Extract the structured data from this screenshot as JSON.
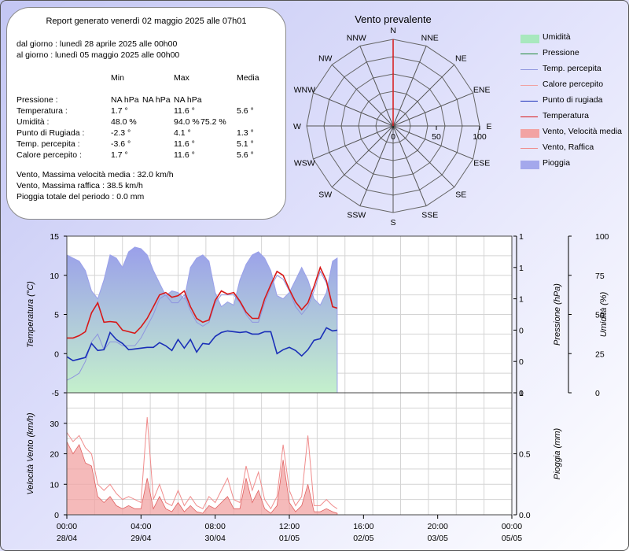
{
  "report": {
    "title": "Report generato venerdì 02 maggio 2025 alle 07h01",
    "from": "dal giorno : lunedì 28 aprile 2025 alle 00h00",
    "to": "al giorno : lunedì 05 maggio 2025 alle 00h00",
    "col_min": "Min",
    "col_max": "Max",
    "col_avg": "Media",
    "rows": [
      {
        "label": "Pressione :",
        "min": "NA hPa",
        "min2": "NA hPa",
        "max": "NA hPa",
        "max2": "",
        "avg": ""
      },
      {
        "label": "Temperatura :",
        "min": "1.7 °",
        "min2": "",
        "max": "11.6 °",
        "max2": "",
        "avg": "5.6 °"
      },
      {
        "label": "Umidità :",
        "min": "48.0 %",
        "min2": "",
        "max": "94.0 %",
        "max2": "75.2 %",
        "avg": ""
      },
      {
        "label": "Punto di Rugiada :",
        "min": "-2.3 °",
        "min2": "",
        "max": "4.1 °",
        "max2": "",
        "avg": "1.3 °"
      },
      {
        "label": "Temp. percepita :",
        "min": "-3.6 °",
        "min2": "",
        "max": "11.6 °",
        "max2": "",
        "avg": "5.1 °"
      },
      {
        "label": "Calore percepito :",
        "min": "1.7 °",
        "min2": "",
        "max": "11.6 °",
        "max2": "",
        "avg": "5.6 °"
      }
    ],
    "wind_avg": "Vento, Massima velocità media : 32.0 km/h",
    "wind_gust": "Vento, Massima raffica : 38.5 km/h",
    "rain_total": "Pioggia totale del periodo : 0.0 mm"
  },
  "legend": [
    {
      "label": "Umidità",
      "color": "#a8e8be",
      "kind": "box"
    },
    {
      "label": "Pressione",
      "color": "#1e8a3a",
      "kind": "line"
    },
    {
      "label": "Temp. percepita",
      "color": "#8f96de",
      "kind": "line"
    },
    {
      "label": "Calore percepito",
      "color": "#f0a0a0",
      "kind": "line"
    },
    {
      "label": "Punto di rugiada",
      "color": "#1a2fb8",
      "kind": "line"
    },
    {
      "label": "Temperatura",
      "color": "#d81818",
      "kind": "line"
    },
    {
      "label": "Vento, Velocità media",
      "color": "#f2a3a3",
      "kind": "box"
    },
    {
      "label": "Vento, Raffica",
      "color": "#f08c8c",
      "kind": "line"
    },
    {
      "label": "Pioggia",
      "color": "#a4a8ec",
      "kind": "box"
    }
  ],
  "chart_data": [
    {
      "type": "radar",
      "title": "Vento prevalente",
      "directions": [
        "N",
        "NNE",
        "NE",
        "ENE",
        "E",
        "ESE",
        "SE",
        "SSE",
        "S",
        "SSW",
        "SW",
        "WSW",
        "W",
        "WNW",
        "NW",
        "NNW"
      ],
      "values": [
        100,
        0,
        0,
        0,
        0,
        0,
        0,
        0,
        0,
        0,
        0,
        0,
        0,
        0,
        0,
        0
      ],
      "rmax": 100,
      "ticks": [
        "0",
        "50",
        "100"
      ],
      "color": "#d81818"
    },
    {
      "type": "line",
      "x": [
        0,
        2,
        4,
        6,
        8,
        10,
        12,
        14,
        16,
        18,
        20,
        22,
        24,
        26,
        28,
        30,
        32,
        34,
        36,
        38,
        40,
        42,
        44,
        46,
        48,
        50,
        52,
        54,
        56,
        58,
        60,
        62,
        64,
        66,
        68,
        70,
        72,
        74,
        76,
        78,
        80,
        82,
        84,
        86,
        87.5
      ],
      "x_ticks": [
        {
          "t": "00:00",
          "d": "28/04"
        },
        {
          "t": "04:00",
          "d": "29/04"
        },
        {
          "t": "08:00",
          "d": "30/04"
        },
        {
          "t": "12:00",
          "d": "01/05"
        },
        {
          "t": "16:00",
          "d": "02/05"
        },
        {
          "t": "20:00",
          "d": "03/05"
        },
        {
          "t": "00:00",
          "d": "05/05"
        }
      ],
      "x_range": [
        0,
        144
      ],
      "y_left_label": "Temperatura (°C)",
      "y_left_range": [
        -5,
        15
      ],
      "y_left_ticks": [
        "15",
        "10",
        "5",
        "0",
        "-5"
      ],
      "y_mid_label": "Pressione (hPa)",
      "y_mid_ticks": [
        "1",
        "1",
        "1",
        "0",
        "0",
        "0"
      ],
      "y_right_label": "Umidità (%)",
      "y_right_range": [
        0,
        100
      ],
      "y_right_ticks": [
        "100",
        "75",
        "50",
        "25",
        "0"
      ],
      "series": [
        {
          "name": "Temperatura",
          "color": "#d81818",
          "values": [
            2,
            2,
            2.3,
            2.8,
            5.2,
            6.5,
            4,
            4.1,
            4,
            3,
            2.8,
            2.6,
            3.4,
            4.5,
            6,
            7.5,
            7.8,
            7.2,
            7.4,
            8,
            6,
            4.5,
            4,
            4.3,
            6.8,
            8,
            7.6,
            7.8,
            6.7,
            5.3,
            4.5,
            4.5,
            7,
            8.8,
            10.5,
            10,
            8.2,
            6.6,
            5.6,
            6.5,
            8.6,
            11,
            9.3,
            6,
            5.8
          ]
        },
        {
          "name": "Punto di rugiada",
          "color": "#1a2fb8",
          "values": [
            -0.4,
            -0.9,
            -0.7,
            -0.5,
            1.3,
            0.4,
            0.5,
            2.7,
            1.8,
            1.3,
            0.5,
            0.6,
            0.7,
            0.8,
            0.8,
            1.4,
            1,
            0.4,
            1.8,
            0.7,
            1.8,
            0.2,
            1.3,
            1.2,
            2.2,
            2.7,
            2.9,
            2.8,
            2.7,
            2.8,
            2.5,
            2.5,
            2.8,
            2.8,
            0,
            0.5,
            0.8,
            0.4,
            -0.3,
            0.5,
            1.7,
            1.9,
            3.3,
            2.9,
            3
          ]
        },
        {
          "name": "Temp. percepita",
          "color": "#8f96de",
          "values": [
            -3.4,
            -3,
            -2.5,
            -1,
            1.5,
            2.5,
            0.5,
            1.5,
            1.5,
            1,
            1,
            1,
            2,
            3.5,
            5,
            7,
            7.5,
            6.5,
            6.5,
            7.5,
            5.5,
            4,
            3.5,
            4,
            6.5,
            7.5,
            7.5,
            7.5,
            6.5,
            5,
            4,
            4,
            6.5,
            8.5,
            10,
            9.5,
            8,
            6,
            5,
            6,
            8,
            10.5,
            9,
            6,
            5.8
          ]
        },
        {
          "name": "Umidità",
          "color": "#a8e8be",
          "values": [
            88,
            86,
            84,
            78,
            65,
            60,
            72,
            88,
            86,
            80,
            90,
            93,
            92,
            88,
            78,
            70,
            62,
            65,
            64,
            60,
            80,
            86,
            88,
            84,
            64,
            55,
            58,
            56,
            72,
            82,
            88,
            90,
            86,
            78,
            62,
            60,
            64,
            72,
            80,
            72,
            60,
            56,
            64,
            84,
            86
          ]
        }
      ]
    },
    {
      "type": "area",
      "x": [
        0,
        2,
        4,
        6,
        8,
        10,
        12,
        14,
        16,
        18,
        20,
        22,
        24,
        26,
        28,
        30,
        32,
        34,
        36,
        38,
        40,
        42,
        44,
        46,
        48,
        50,
        52,
        54,
        56,
        58,
        60,
        62,
        64,
        66,
        68,
        70,
        72,
        74,
        76,
        78,
        80,
        82,
        84,
        86,
        87.5
      ],
      "x_range": [
        0,
        144
      ],
      "y_left_label": "Velocità Vento (km/h)",
      "y_left_range": [
        0,
        40
      ],
      "y_left_ticks": [
        "30",
        "20",
        "10",
        "0"
      ],
      "y_right_label": "Pioggia (mm)",
      "y_right_range": [
        0,
        1
      ],
      "y_right_ticks": [
        "1",
        "0.5",
        "0.0"
      ],
      "series": [
        {
          "name": "Vento, Velocità media",
          "color": "#f2a3a3",
          "values": [
            24,
            20,
            23,
            17,
            16,
            6,
            4,
            6,
            3,
            2,
            3,
            2,
            2,
            12,
            2,
            6,
            2,
            1,
            4,
            1,
            3,
            1,
            0.5,
            3,
            2,
            4,
            6,
            2,
            2,
            12,
            4,
            8,
            2,
            0.5,
            3,
            18,
            4,
            1,
            3,
            10,
            1,
            1,
            2,
            1,
            0.5
          ]
        },
        {
          "name": "Vento, Raffica",
          "color": "#f08c8c",
          "values": [
            27,
            24,
            26,
            22,
            20,
            10,
            8,
            10,
            7,
            5,
            6,
            5,
            4,
            32,
            5,
            10,
            4,
            3,
            8,
            3,
            6,
            3,
            2,
            6,
            4,
            8,
            12,
            5,
            4,
            16,
            8,
            14,
            5,
            2,
            6,
            23,
            8,
            3,
            6,
            26,
            3,
            3,
            5,
            3,
            2
          ]
        },
        {
          "name": "Pioggia",
          "color": "#a4a8ec",
          "values": [
            0,
            0,
            0,
            0,
            0,
            0,
            0,
            0,
            0,
            0,
            0,
            0,
            0,
            0,
            0,
            0,
            0,
            0,
            0,
            0,
            0,
            0,
            0,
            0,
            0,
            0,
            0,
            0,
            0,
            0,
            0,
            0,
            0,
            0,
            0,
            0,
            0,
            0,
            0,
            0,
            0,
            0,
            0,
            0,
            0
          ]
        }
      ]
    }
  ]
}
